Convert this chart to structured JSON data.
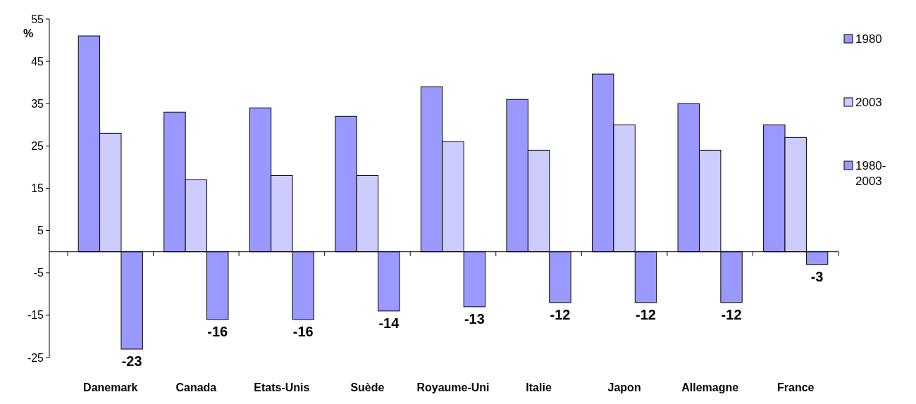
{
  "chart_data": {
    "type": "bar",
    "ylabel": "%",
    "categories": [
      "Danemark",
      "Canada",
      "Etats-Unis",
      "Suède",
      "Royaume-Uni",
      "Italie",
      "Japon",
      "Allemagne",
      "France"
    ],
    "series": [
      {
        "name": "1980",
        "color": "#9999ff",
        "values": [
          51,
          33,
          34,
          32,
          39,
          36,
          42,
          35,
          30
        ]
      },
      {
        "name": "2003",
        "color": "#ccccff",
        "values": [
          28,
          17,
          18,
          18,
          26,
          24,
          30,
          24,
          27
        ]
      },
      {
        "name": "1980-2003",
        "color": "#9999ff",
        "values": [
          -23,
          -16,
          -16,
          -14,
          -13,
          -12,
          -12,
          -12,
          -3
        ],
        "value_labels": [
          "-23",
          "-16",
          "-16",
          "-14",
          "-13",
          "-12",
          "-12",
          "-12",
          "-3"
        ]
      }
    ],
    "ylim": [
      -25,
      55
    ],
    "yticks": [
      -25,
      -15,
      -5,
      5,
      15,
      25,
      35,
      45,
      55
    ],
    "grid": false,
    "legend": "right"
  }
}
